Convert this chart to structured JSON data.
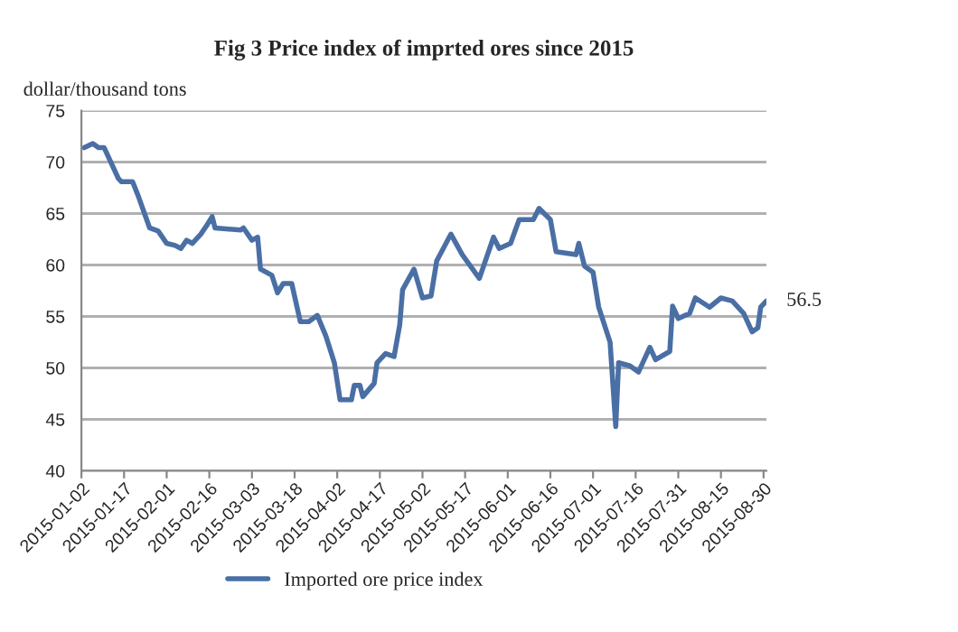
{
  "chart_data": {
    "type": "line",
    "title": "Fig 3 Price index of imprted ores since 2015",
    "ylabel": "dollar/thousand tons",
    "x": [
      "2015-01-03",
      "2015-01-06",
      "2015-01-08",
      "2015-01-10",
      "2015-01-15",
      "2015-01-16",
      "2015-01-20",
      "2015-01-22",
      "2015-01-26",
      "2015-01-29",
      "2015-02-01",
      "2015-02-04",
      "2015-02-06",
      "2015-02-08",
      "2015-02-10",
      "2015-02-13",
      "2015-02-15",
      "2015-02-17",
      "2015-02-18",
      "2015-02-27",
      "2015-02-28",
      "2015-03-03",
      "2015-03-05",
      "2015-03-06",
      "2015-03-10",
      "2015-03-12",
      "2015-03-14",
      "2015-03-17",
      "2015-03-20",
      "2015-03-23",
      "2015-03-26",
      "2015-03-29",
      "2015-04-01",
      "2015-04-03",
      "2015-04-07",
      "2015-04-08",
      "2015-04-10",
      "2015-04-11",
      "2015-04-15",
      "2015-04-16",
      "2015-04-19",
      "2015-04-22",
      "2015-04-24",
      "2015-04-25",
      "2015-04-29",
      "2015-05-02",
      "2015-05-05",
      "2015-05-07",
      "2015-05-12",
      "2015-05-16",
      "2015-05-22",
      "2015-05-27",
      "2015-05-29",
      "2015-06-02",
      "2015-06-05",
      "2015-06-10",
      "2015-06-12",
      "2015-06-16",
      "2015-06-18",
      "2015-06-25",
      "2015-06-26",
      "2015-06-28",
      "2015-07-01",
      "2015-07-03",
      "2015-07-05",
      "2015-07-07",
      "2015-07-09",
      "2015-07-10",
      "2015-07-14",
      "2015-07-17",
      "2015-07-21",
      "2015-07-23",
      "2015-07-28",
      "2015-07-29",
      "2015-07-31",
      "2015-08-04",
      "2015-08-06",
      "2015-08-11",
      "2015-08-15",
      "2015-08-19",
      "2015-08-23",
      "2015-08-26",
      "2015-08-28",
      "2015-08-29",
      "2015-08-31"
    ],
    "series": [
      {
        "name": "Imported ore price index",
        "color": "#4a6fa5",
        "values": [
          71.4,
          71.8,
          71.4,
          71.4,
          68.4,
          68.1,
          68.1,
          66.7,
          63.6,
          63.3,
          62.1,
          61.9,
          61.6,
          62.4,
          62.1,
          63.0,
          63.8,
          64.7,
          63.6,
          63.4,
          63.6,
          62.4,
          62.7,
          59.6,
          59.0,
          57.3,
          58.2,
          58.2,
          54.5,
          54.5,
          55.1,
          53.1,
          50.5,
          46.9,
          46.9,
          48.3,
          48.3,
          47.2,
          48.5,
          50.5,
          51.4,
          51.1,
          54.2,
          57.6,
          59.6,
          56.8,
          57.0,
          60.4,
          63.0,
          61.0,
          58.7,
          62.7,
          61.6,
          62.1,
          64.4,
          64.4,
          65.5,
          64.4,
          61.3,
          61.0,
          62.1,
          59.9,
          59.3,
          55.9,
          54.2,
          52.5,
          44.3,
          50.5,
          50.2,
          49.6,
          52.0,
          50.8,
          51.6,
          56.0,
          54.8,
          55.3,
          56.8,
          55.9,
          56.8,
          56.5,
          55.3,
          53.5,
          53.9,
          55.9,
          56.5
        ],
        "value_labels": [
          null,
          null,
          null,
          null,
          null,
          null,
          null,
          null,
          null,
          null,
          null,
          null,
          null,
          null,
          null,
          null,
          null,
          null,
          null,
          null,
          null,
          null,
          null,
          null,
          null,
          null,
          null,
          null,
          null,
          null,
          null,
          null,
          null,
          null,
          null,
          null,
          null,
          null,
          null,
          null,
          null,
          null,
          null,
          null,
          null,
          null,
          null,
          null,
          null,
          null,
          null,
          null,
          null,
          null,
          null,
          null,
          null,
          null,
          null,
          null,
          null,
          null,
          null,
          null,
          null,
          null,
          null,
          null,
          null,
          null,
          null,
          null,
          null,
          null,
          null,
          null,
          null,
          null,
          null,
          null,
          null,
          null,
          null,
          null,
          "56.5"
        ]
      }
    ],
    "xlim": [
      "2015-01-02",
      "2015-08-31"
    ],
    "xticks": [
      "2015-01-02",
      "2015-01-17",
      "2015-02-01",
      "2015-02-16",
      "2015-03-03",
      "2015-03-18",
      "2015-04-02",
      "2015-04-17",
      "2015-05-02",
      "2015-05-17",
      "2015-06-01",
      "2015-06-16",
      "2015-07-01",
      "2015-07-16",
      "2015-07-31",
      "2015-08-15",
      "2015-08-30"
    ],
    "ylim": [
      40,
      75
    ],
    "yticks": [
      40,
      45,
      50,
      55,
      60,
      65,
      70,
      75
    ],
    "grid": "y",
    "legend": "bottom",
    "marker": "none",
    "line_style": "solid"
  }
}
